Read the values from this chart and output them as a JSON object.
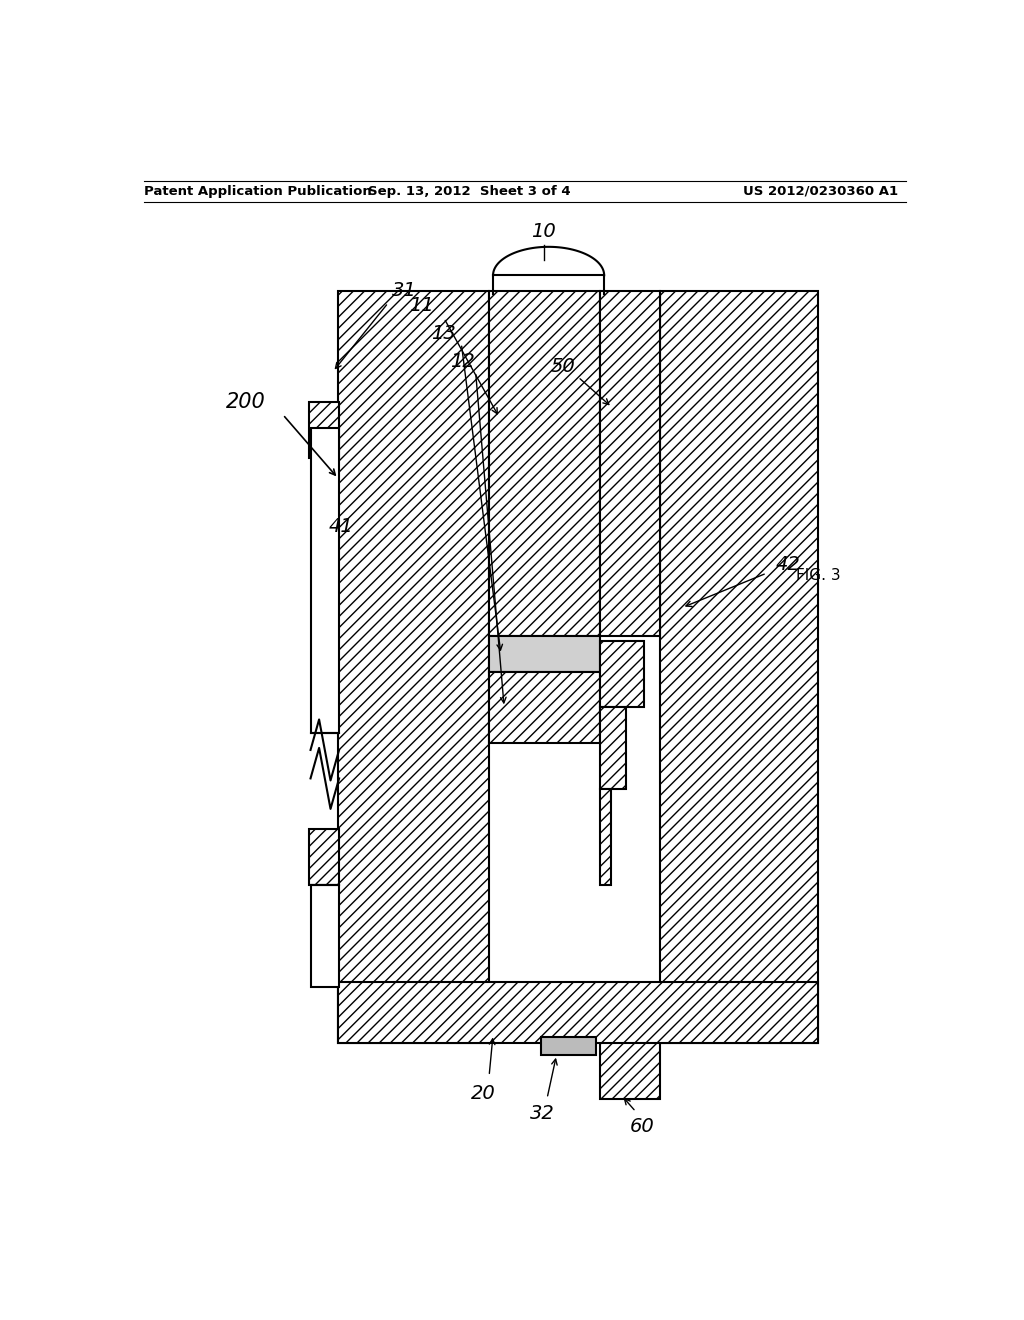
{
  "background_color": "#ffffff",
  "header_left": "Patent Application Publication",
  "header_center": "Sep. 13, 2012  Sheet 3 of 4",
  "header_right": "US 2012/0230360 A1",
  "fig_label": "FIG. 3",
  "line_width": 1.5
}
